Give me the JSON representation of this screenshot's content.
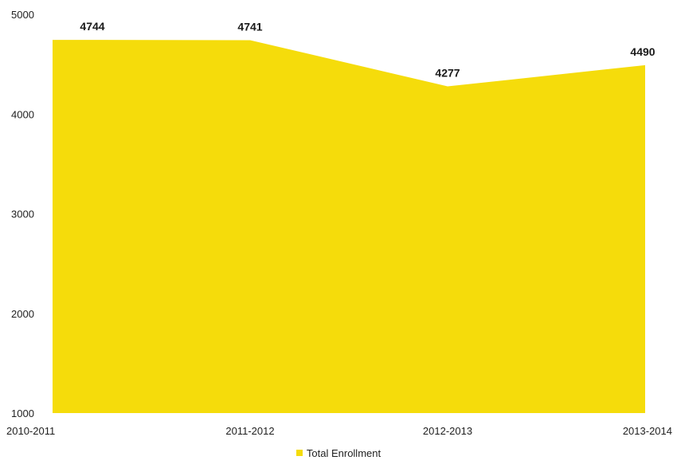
{
  "chart_data": {
    "type": "area",
    "categories": [
      "2010-2011",
      "2011-2012",
      "2012-2013",
      "2013-2014"
    ],
    "series": [
      {
        "name": "Total Enrollment",
        "values": [
          4744,
          4741,
          4277,
          4490
        ]
      }
    ],
    "data_labels": [
      "4744",
      "4741",
      "4277",
      "4490"
    ],
    "y_ticks": [
      "1000",
      "2000",
      "3000",
      "4000",
      "5000"
    ],
    "ylim": [
      1000,
      5000
    ],
    "grid": false,
    "legend": "bottom-center",
    "colors": {
      "area": "#f5dc0b"
    }
  }
}
